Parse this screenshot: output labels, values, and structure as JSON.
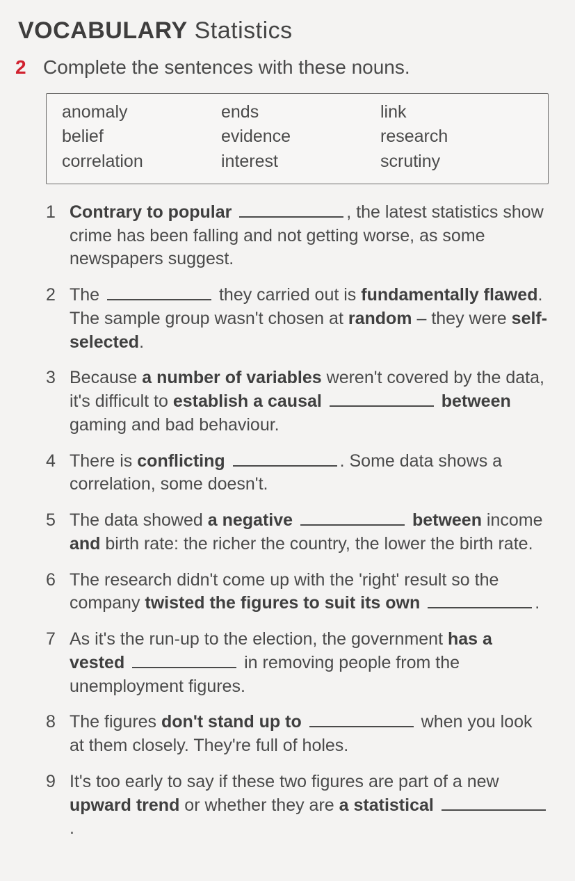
{
  "heading": {
    "bold": "VOCABULARY",
    "light": "Statistics"
  },
  "exercise_number": "2",
  "instruction": "Complete the sentences with these nouns.",
  "word_box": [
    "anomaly",
    "ends",
    "link",
    "belief",
    "evidence",
    "research",
    "correlation",
    "interest",
    "scrutiny"
  ],
  "items": [
    {
      "n": "1",
      "segments": [
        {
          "t": "Contrary to popular ",
          "b": true
        },
        {
          "blank": true
        },
        {
          "t": ", the latest statistics show crime has been falling and not getting worse, as some newspapers suggest."
        }
      ]
    },
    {
      "n": "2",
      "segments": [
        {
          "t": "The "
        },
        {
          "blank": true
        },
        {
          "t": " they carried out is "
        },
        {
          "t": "fundamentally flawed",
          "b": true
        },
        {
          "t": ". The sample group wasn't chosen at "
        },
        {
          "t": "random",
          "b": true
        },
        {
          "t": " – they were "
        },
        {
          "t": "self-selected",
          "b": true
        },
        {
          "t": "."
        }
      ]
    },
    {
      "n": "3",
      "segments": [
        {
          "t": "Because "
        },
        {
          "t": "a number of variables",
          "b": true
        },
        {
          "t": " weren't covered by the data, it's difficult to "
        },
        {
          "t": "establish a causal ",
          "b": true
        },
        {
          "blank": true
        },
        {
          "t": " "
        },
        {
          "t": "between",
          "b": true
        },
        {
          "t": " gaming and bad behaviour."
        }
      ]
    },
    {
      "n": "4",
      "segments": [
        {
          "t": "There is "
        },
        {
          "t": "conflicting ",
          "b": true
        },
        {
          "blank": true
        },
        {
          "t": ". Some data shows a correlation, some doesn't."
        }
      ]
    },
    {
      "n": "5",
      "segments": [
        {
          "t": "The data showed "
        },
        {
          "t": "a negative ",
          "b": true
        },
        {
          "blank": true
        },
        {
          "t": " "
        },
        {
          "t": "between",
          "b": true
        },
        {
          "t": " income "
        },
        {
          "t": "and",
          "b": true
        },
        {
          "t": " birth rate: the richer the country, the lower the birth rate."
        }
      ]
    },
    {
      "n": "6",
      "segments": [
        {
          "t": "The research didn't come up with the 'right' result so the company "
        },
        {
          "t": "twisted the figures to suit its own",
          "b": true
        },
        {
          "t": " "
        },
        {
          "blank": true
        },
        {
          "t": "."
        }
      ]
    },
    {
      "n": "7",
      "segments": [
        {
          "t": "As it's the run-up to the election, the government "
        },
        {
          "t": "has a vested ",
          "b": true
        },
        {
          "blank": true
        },
        {
          "t": " in removing people from the unemployment figures."
        }
      ]
    },
    {
      "n": "8",
      "segments": [
        {
          "t": "The figures "
        },
        {
          "t": "don't stand up to ",
          "b": true
        },
        {
          "blank": true
        },
        {
          "t": " when you look at them closely. They're full of holes."
        }
      ]
    },
    {
      "n": "9",
      "segments": [
        {
          "t": "It's too early to say if these two figures are part of a new "
        },
        {
          "t": "upward trend",
          "b": true
        },
        {
          "t": " or whether they are "
        },
        {
          "t": "a statistical",
          "b": true
        },
        {
          "t": " "
        },
        {
          "blank": true
        },
        {
          "t": "."
        }
      ]
    }
  ]
}
